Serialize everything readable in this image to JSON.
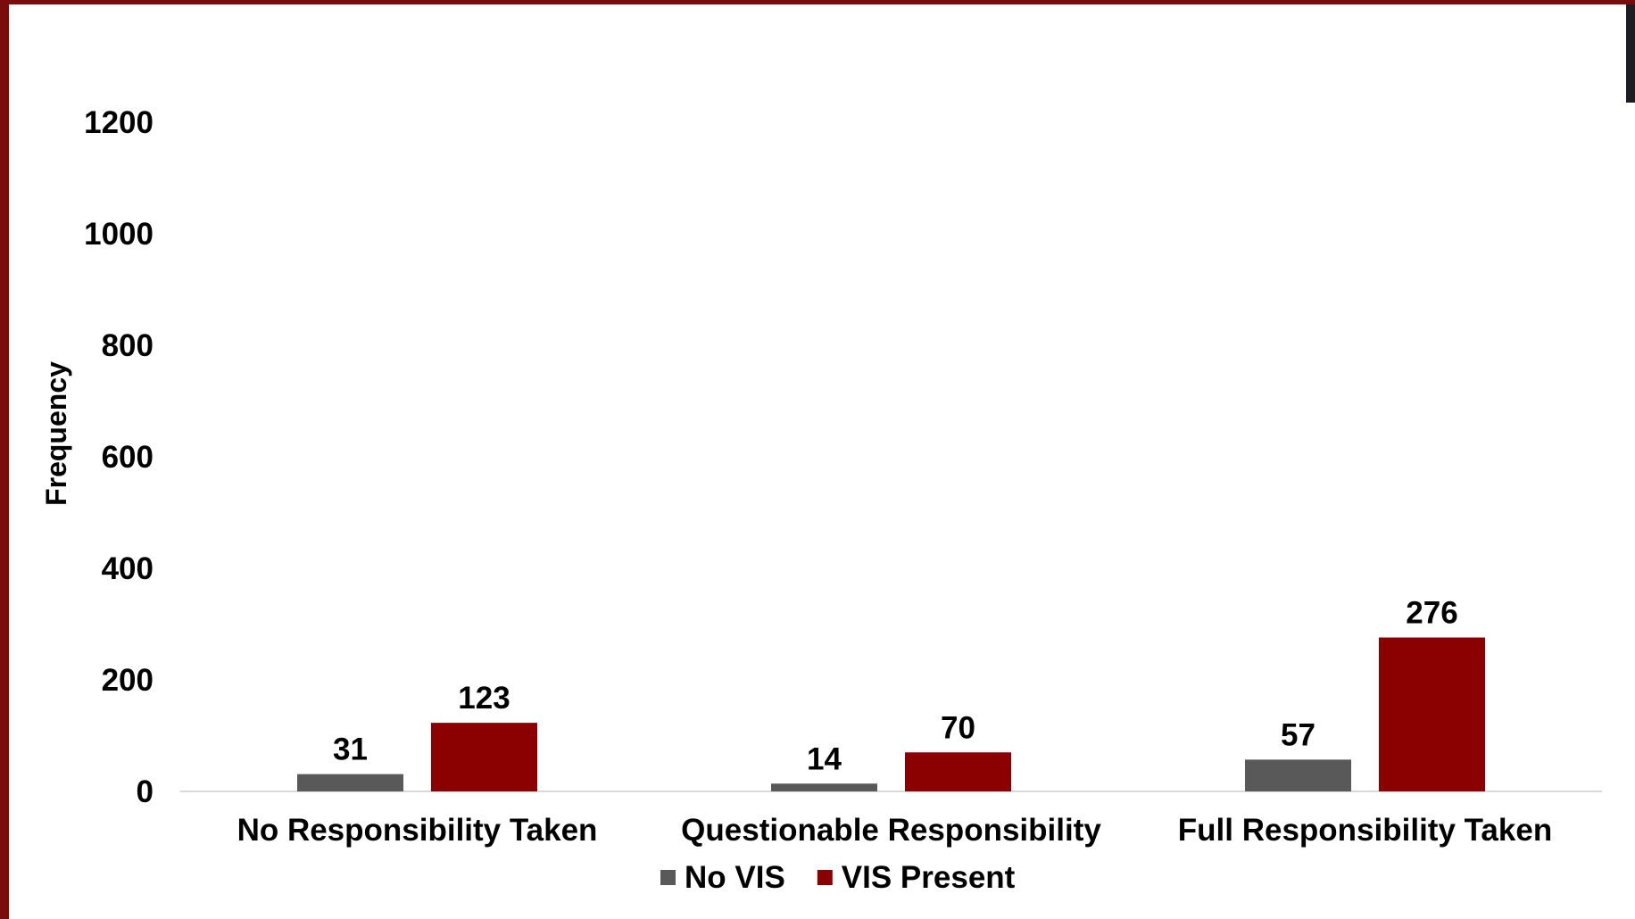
{
  "chart_data": {
    "type": "bar",
    "title": "",
    "xlabel": "",
    "ylabel": "Frequency",
    "ylim": [
      0,
      1200
    ],
    "yticks": [
      0,
      200,
      400,
      600,
      800,
      1000,
      1200
    ],
    "grid": false,
    "legend_position": "bottom",
    "categories": [
      "No Responsibility Taken",
      "Questionable Responsibility",
      "Full Responsibility Taken"
    ],
    "series": [
      {
        "name": "No VIS",
        "color": "#595959",
        "values": [
          31,
          14,
          57
        ]
      },
      {
        "name": "VIS Present",
        "color": "#8b0000",
        "values": [
          123,
          70,
          276
        ]
      }
    ]
  }
}
